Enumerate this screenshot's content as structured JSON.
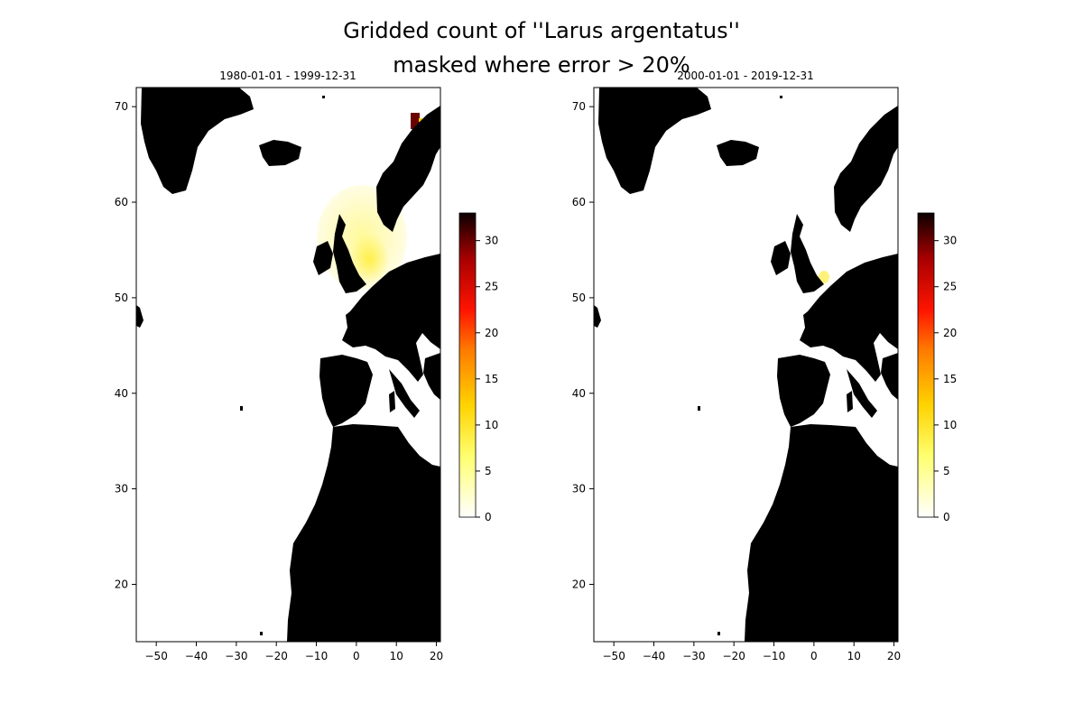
{
  "figure": {
    "title_line1": "Gridded count of ''Larus argentatus''",
    "title_line2": "masked where error > 20%"
  },
  "colors": {
    "land": "#000000",
    "sea": "#ffffff",
    "colormap": "hot_r"
  },
  "chart_data": [
    {
      "type": "heatmap",
      "title": "1980-01-01 - 1999-12-31",
      "xlim": [
        -55,
        21
      ],
      "ylim": [
        14,
        72
      ],
      "xticks": [
        -50,
        -40,
        -30,
        -20,
        -10,
        0,
        10,
        20
      ],
      "yticks": [
        20,
        30,
        40,
        50,
        60,
        70
      ],
      "xtick_labels": [
        "−50",
        "−40",
        "−30",
        "−20",
        "−10",
        "0",
        "10",
        "20"
      ],
      "ytick_labels": [
        "20",
        "30",
        "40",
        "50",
        "60",
        "70"
      ],
      "colorbar": {
        "min": 0,
        "max": 33,
        "ticks": [
          0,
          5,
          10,
          15,
          20,
          25,
          30
        ],
        "tick_labels": [
          "0",
          "5",
          "10",
          "15",
          "20",
          "25",
          "30"
        ]
      },
      "count_field": {
        "description": "low counts (about 0-5) over a region centred near 3°E, 56°N; peak about 33 near 16°E, 68°N",
        "background": {
          "center": [
            3,
            56.5
          ],
          "rx": 11,
          "ry": 5.5,
          "value": 1.5
        },
        "core": {
          "center": [
            4,
            55
          ],
          "rx": 4,
          "ry": 3,
          "value": 5
        },
        "hotspot": {
          "lon": 15.5,
          "lat": 68,
          "value": 32
        }
      }
    },
    {
      "type": "heatmap",
      "title": "2000-01-01 - 2019-12-31",
      "xlim": [
        -55,
        21
      ],
      "ylim": [
        14,
        72
      ],
      "xticks": [
        -50,
        -40,
        -30,
        -20,
        -10,
        0,
        10,
        20
      ],
      "yticks": [
        20,
        30,
        40,
        50,
        60,
        70
      ],
      "xtick_labels": [
        "−50",
        "−40",
        "−30",
        "−20",
        "−10",
        "0",
        "10",
        "20"
      ],
      "ytick_labels": [
        "20",
        "30",
        "40",
        "50",
        "60",
        "70"
      ],
      "colorbar": {
        "min": 0,
        "max": 33,
        "ticks": [
          0,
          5,
          10,
          15,
          20,
          25,
          30
        ],
        "tick_labels": [
          "0",
          "5",
          "10",
          "15",
          "20",
          "25",
          "30"
        ]
      },
      "count_field": {
        "description": "small low-count patch near 3°E, 51.5°N",
        "patch": {
          "lon": 3,
          "lat": 51.5,
          "value": 3
        }
      }
    }
  ]
}
